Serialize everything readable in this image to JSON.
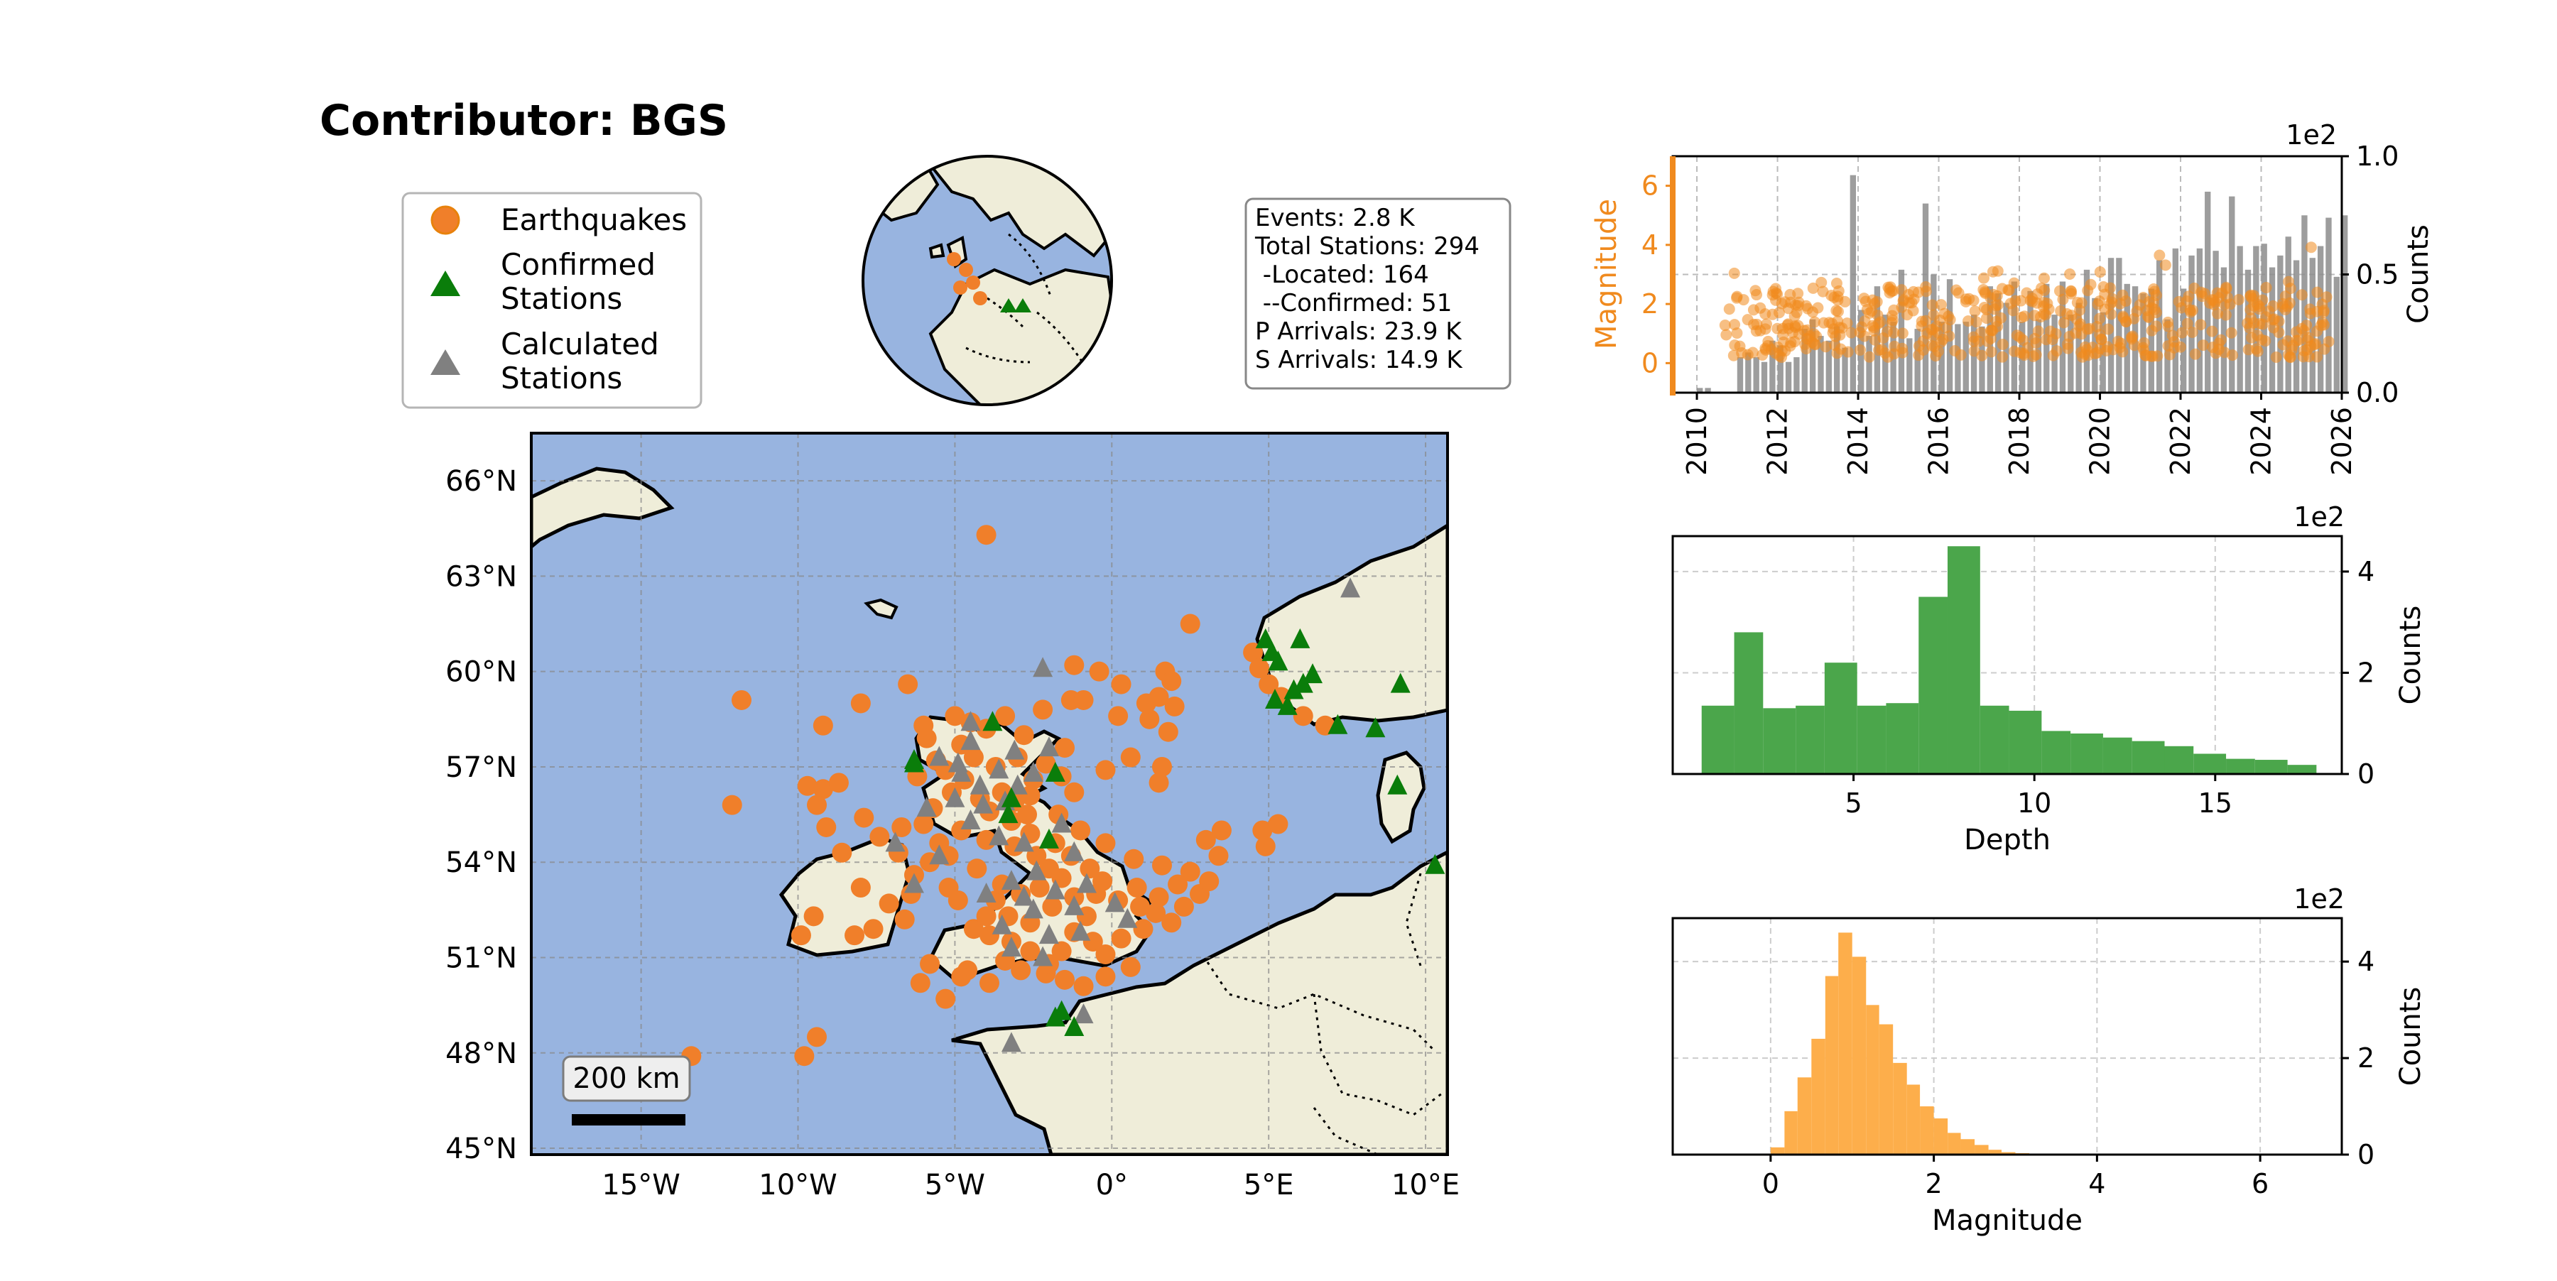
{
  "title": "Contributor: BGS",
  "colors": {
    "earthquake": "#f07f2a",
    "confirmed_station": "#0a7d0a",
    "calculated_station": "#808080",
    "ocean": "#98b4e0",
    "land": "#efedd9",
    "depth_hist": "#4ba64b",
    "magnitude_hist": "#fdae4b",
    "magnitude_axis": "#f08a1e",
    "counts_bar": "#8c8c8c",
    "scatter": "#f08a1e"
  },
  "legend": {
    "earthquakes": "Earthquakes",
    "confirmed_stations": "Confirmed\nStations",
    "calculated_stations": "Calculated\nStations"
  },
  "stats": [
    "Events: 2.8 K",
    "Total Stations: 294",
    " -Located: 164",
    " --Confirmed: 51",
    "P Arrivals: 23.9 K",
    "S Arrivals: 14.9 K"
  ],
  "map": {
    "extent_lon": [
      -18.5,
      10.7
    ],
    "extent_lat": [
      44.8,
      67.5
    ],
    "lat_ticks": [
      "45°N",
      "48°N",
      "51°N",
      "54°N",
      "57°N",
      "60°N",
      "63°N",
      "66°N"
    ],
    "lat_tick_values": [
      45,
      48,
      51,
      54,
      57,
      60,
      63,
      66
    ],
    "lon_ticks": [
      "15°W",
      "10°W",
      "5°W",
      "0°",
      "5°E",
      "10°E"
    ],
    "lon_tick_values": [
      -15,
      -10,
      -5,
      0,
      5,
      10
    ],
    "scale_bar": "200 km",
    "events": [
      [
        -4,
        64.3
      ],
      [
        -6.5,
        59.6
      ],
      [
        -8,
        59
      ],
      [
        -9.2,
        58.3
      ],
      [
        -11.8,
        59.1
      ],
      [
        -9.7,
        56.4
      ],
      [
        -9.2,
        56.3
      ],
      [
        -8.7,
        56.5
      ],
      [
        -9.4,
        55.8
      ],
      [
        -12.1,
        55.8
      ],
      [
        -9.1,
        55.1
      ],
      [
        -8.6,
        54.3
      ],
      [
        -9.5,
        52.3
      ],
      [
        -9.9,
        51.7
      ],
      [
        -8.2,
        51.7
      ],
      [
        -9.4,
        48.5
      ],
      [
        -9.8,
        47.9
      ],
      [
        -13.4,
        47.9
      ],
      [
        -5.3,
        49.7
      ],
      [
        -6.1,
        50.2
      ],
      [
        -4.6,
        50.6
      ],
      [
        -5.8,
        50.8
      ],
      [
        -5.2,
        53.2
      ],
      [
        -4.9,
        52.8
      ],
      [
        -6.3,
        53.6
      ],
      [
        -5.5,
        54.6
      ],
      [
        -6.0,
        55.2
      ],
      [
        -5.7,
        55.7
      ],
      [
        -5.1,
        56.2
      ],
      [
        -6.2,
        56.7
      ],
      [
        -5.6,
        57.2
      ],
      [
        -4.8,
        57.7
      ],
      [
        -5.9,
        57.9
      ],
      [
        -4.5,
        58.4
      ],
      [
        -3.4,
        58.6
      ],
      [
        -2.2,
        58.8
      ],
      [
        -1.3,
        59.1
      ],
      [
        -3.0,
        57.3
      ],
      [
        -2.5,
        56.6
      ],
      [
        -3.5,
        56.2
      ],
      [
        -4.2,
        56.0
      ],
      [
        -3.9,
        55.6
      ],
      [
        -3.2,
        55.3
      ],
      [
        -2.6,
        54.9
      ],
      [
        -3.1,
        54.5
      ],
      [
        -2.4,
        54.2
      ],
      [
        -1.8,
        54.6
      ],
      [
        -1.3,
        54.2
      ],
      [
        -0.7,
        53.8
      ],
      [
        -1.6,
        53.5
      ],
      [
        -2.3,
        53.2
      ],
      [
        -2.9,
        53.0
      ],
      [
        -3.7,
        52.8
      ],
      [
        -3.3,
        52.3
      ],
      [
        -2.6,
        52.1
      ],
      [
        -1.9,
        52.6
      ],
      [
        -1.2,
        52.9
      ],
      [
        -0.5,
        53.0
      ],
      [
        0.2,
        52.8
      ],
      [
        0.9,
        52.6
      ],
      [
        1.4,
        52.4
      ],
      [
        1.9,
        52.1
      ],
      [
        2.3,
        52.6
      ],
      [
        2.8,
        53.0
      ],
      [
        3.1,
        53.4
      ],
      [
        2.5,
        53.7
      ],
      [
        1.6,
        53.9
      ],
      [
        0.7,
        54.1
      ],
      [
        -0.2,
        54.6
      ],
      [
        -1.0,
        55.0
      ],
      [
        -1.7,
        55.5
      ],
      [
        -1.2,
        56.2
      ],
      [
        -0.2,
        56.9
      ],
      [
        0.6,
        57.3
      ],
      [
        1.2,
        58.5
      ],
      [
        1.8,
        58.1
      ],
      [
        0.2,
        58.6
      ],
      [
        -0.9,
        59.1
      ],
      [
        -1.2,
        60.2
      ],
      [
        -0.4,
        60.0
      ],
      [
        0.3,
        59.6
      ],
      [
        1.7,
        60.0
      ],
      [
        1.9,
        59.7
      ],
      [
        1.5,
        59.2
      ],
      [
        2.0,
        58.9
      ],
      [
        2.5,
        61.5
      ],
      [
        1.1,
        59.0
      ],
      [
        1.6,
        57.0
      ],
      [
        1.5,
        56.5
      ],
      [
        4.5,
        60.6
      ],
      [
        4.7,
        60.1
      ],
      [
        5.0,
        59.6
      ],
      [
        5.4,
        59.2
      ],
      [
        6.1,
        58.6
      ],
      [
        6.8,
        58.3
      ],
      [
        3.5,
        55.0
      ],
      [
        3.0,
        54.7
      ],
      [
        3.4,
        54.2
      ],
      [
        4.8,
        55.0
      ],
      [
        4.9,
        54.5
      ],
      [
        5.3,
        55.2
      ],
      [
        -2.1,
        50.5
      ],
      [
        -1.5,
        50.3
      ],
      [
        -0.9,
        50.1
      ],
      [
        -0.2,
        50.4
      ],
      [
        0.6,
        50.7
      ],
      [
        -3.2,
        51.5
      ],
      [
        -3.9,
        51.7
      ],
      [
        -4.4,
        51.9
      ],
      [
        -4.0,
        52.3
      ],
      [
        -1.2,
        51.8
      ],
      [
        -0.6,
        51.5
      ],
      [
        0.3,
        51.6
      ],
      [
        1.0,
        51.9
      ],
      [
        -2.6,
        51.2
      ],
      [
        -3.4,
        50.9
      ],
      [
        -2.0,
        50.8
      ],
      [
        -6.4,
        53.0
      ],
      [
        -7.1,
        52.7
      ],
      [
        -8.0,
        53.2
      ],
      [
        -7.4,
        54.8
      ],
      [
        -6.7,
        55.1
      ],
      [
        -7.9,
        55.4
      ],
      [
        -4.8,
        55.0
      ],
      [
        -5.2,
        54.2
      ],
      [
        -4.0,
        54.7
      ],
      [
        -2.0,
        53.8
      ],
      [
        -0.8,
        52.3
      ],
      [
        -3.5,
        53.3
      ],
      [
        -4.3,
        53.8
      ],
      [
        -2.6,
        56.1
      ],
      [
        -3.7,
        57.0
      ],
      [
        -4.7,
        56.6
      ],
      [
        -5.3,
        56.9
      ],
      [
        -4.0,
        58.2
      ],
      [
        -2.8,
        58.0
      ],
      [
        -5.0,
        58.6
      ],
      [
        -6.0,
        58.3
      ],
      [
        -4.4,
        57.3
      ],
      [
        -1.5,
        57.6
      ],
      [
        -2.1,
        57.1
      ],
      [
        -1.6,
        56.7
      ],
      [
        -3.1,
        55.9
      ],
      [
        -2.7,
        55.5
      ],
      [
        -0.3,
        53.4
      ],
      [
        0.8,
        53.2
      ],
      [
        1.5,
        52.9
      ],
      [
        2.1,
        53.3
      ],
      [
        -1.6,
        51.2
      ],
      [
        -0.2,
        51.1
      ],
      [
        -4.8,
        50.4
      ],
      [
        -3.9,
        50.2
      ],
      [
        -2.9,
        50.6
      ],
      [
        -6.8,
        54.3
      ],
      [
        -5.8,
        54.0
      ],
      [
        -6.6,
        52.2
      ],
      [
        -7.6,
        51.9
      ]
    ],
    "confirmed_stations": [
      [
        -3.8,
        58.4
      ],
      [
        -1.8,
        56.8
      ],
      [
        -3.3,
        55.5
      ],
      [
        -3.2,
        56.0
      ],
      [
        -2.0,
        54.7
      ],
      [
        -6.3,
        57.2
      ],
      [
        -1.6,
        49.3
      ],
      [
        -1.2,
        48.8
      ],
      [
        -1.8,
        49.1
      ],
      [
        4.9,
        61.0
      ],
      [
        5.1,
        60.6
      ],
      [
        6.0,
        61.0
      ],
      [
        5.3,
        60.3
      ],
      [
        6.1,
        59.6
      ],
      [
        6.4,
        59.9
      ],
      [
        5.8,
        59.4
      ],
      [
        5.2,
        59.1
      ],
      [
        5.6,
        58.9
      ],
      [
        7.2,
        58.3
      ],
      [
        8.4,
        58.2
      ],
      [
        9.2,
        59.6
      ],
      [
        9.1,
        56.4
      ],
      [
        10.3,
        53.9
      ],
      [
        -6.3,
        57.1
      ]
    ],
    "calculated_stations": [
      [
        -2.2,
        60.1
      ],
      [
        7.6,
        62.6
      ],
      [
        -5.5,
        57.3
      ],
      [
        -4.5,
        57.8
      ],
      [
        -3.1,
        57.5
      ],
      [
        -3.6,
        56.9
      ],
      [
        -4.2,
        56.4
      ],
      [
        -5.0,
        56.0
      ],
      [
        -3.0,
        56.4
      ],
      [
        -4.5,
        55.3
      ],
      [
        -3.6,
        54.8
      ],
      [
        -2.8,
        54.6
      ],
      [
        -1.2,
        54.3
      ],
      [
        -2.4,
        53.7
      ],
      [
        -3.2,
        53.4
      ],
      [
        -4.0,
        53.0
      ],
      [
        -1.8,
        53.1
      ],
      [
        -0.8,
        53.3
      ],
      [
        -1.2,
        52.6
      ],
      [
        -2.5,
        52.5
      ],
      [
        -3.5,
        52.0
      ],
      [
        -2.0,
        51.7
      ],
      [
        -1.0,
        51.8
      ],
      [
        0.5,
        52.2
      ],
      [
        -3.2,
        51.3
      ],
      [
        -2.2,
        51.0
      ],
      [
        -6.3,
        53.3
      ],
      [
        -6.9,
        54.6
      ],
      [
        -5.5,
        54.2
      ],
      [
        -3.2,
        48.3
      ],
      [
        -0.9,
        49.2
      ],
      [
        -4.1,
        55.8
      ],
      [
        -2.5,
        56.8
      ],
      [
        -4.8,
        56.8
      ],
      [
        0.1,
        52.7
      ],
      [
        -2.8,
        52.9
      ],
      [
        -3.4,
        55.9
      ],
      [
        -1.6,
        55.2
      ],
      [
        -2.0,
        57.6
      ],
      [
        -4.5,
        58.4
      ],
      [
        -4.9,
        57.1
      ],
      [
        -5.9,
        55.7
      ]
    ]
  },
  "globe": {},
  "chart_data": [
    {
      "type": "bar",
      "title": "",
      "ylabel": "Counts",
      "ylabel_left": "Magnitude",
      "exponent_label": "1e2",
      "xlim": [
        2009.4,
        2026
      ],
      "x_ticks": [
        "2010",
        "2012",
        "2014",
        "2016",
        "2018",
        "2020",
        "2022",
        "2024",
        "2026"
      ],
      "x_tick_values": [
        2010,
        2012,
        2014,
        2016,
        2018,
        2020,
        2022,
        2024,
        2026
      ],
      "ylim_left": [
        -1,
        7
      ],
      "left_ticks": [
        "0",
        "2",
        "4",
        "6"
      ],
      "left_tick_values": [
        0,
        2,
        4,
        6
      ],
      "ylim": [
        0,
        1
      ],
      "right_ticks": [
        "0.0",
        "0.5",
        "1.0"
      ],
      "right_tick_values": [
        0,
        0.5,
        1
      ],
      "bar_start": 2010.0,
      "bar_width": 0.2,
      "bar_values": [
        0.02,
        0.02,
        0.0,
        0.0,
        0.0,
        0.15,
        0.17,
        0.15,
        0.13,
        0.22,
        0.2,
        0.13,
        0.15,
        0.27,
        0.31,
        0.24,
        0.22,
        0.28,
        0.19,
        0.92,
        0.35,
        0.24,
        0.45,
        0.33,
        0.3,
        0.52,
        0.23,
        0.27,
        0.8,
        0.5,
        0.3,
        0.48,
        0.29,
        0.3,
        0.33,
        0.28,
        0.45,
        0.42,
        0.38,
        0.47,
        0.3,
        0.43,
        0.31,
        0.46,
        0.33,
        0.47,
        0.33,
        0.38,
        0.52,
        0.4,
        0.34,
        0.57,
        0.57,
        0.46,
        0.45,
        0.42,
        0.44,
        0.56,
        0.31,
        0.61,
        0.44,
        0.58,
        0.61,
        0.85,
        0.6,
        0.53,
        0.83,
        0.62,
        0.52,
        0.62,
        0.63,
        0.53,
        0.58,
        0.66,
        0.56,
        0.75,
        0.57,
        0.62,
        0.74,
        0.49,
        0.75
      ],
      "scatter_seed_note": "",
      "scatter_range": [
        2010.7,
        2025.7
      ],
      "scatter_mag_band": [
        0.2,
        2.6
      ]
    },
    {
      "type": "bar",
      "title": "",
      "xlabel": "Depth",
      "ylabel": "Counts",
      "exponent_label": "1e2",
      "xlim": [
        0,
        18.5
      ],
      "x_ticks": [
        "5",
        "10",
        "15"
      ],
      "x_tick_values": [
        5,
        10,
        15
      ],
      "ylim": [
        0,
        4.7
      ],
      "y_ticks": [
        "0",
        "2",
        "4"
      ],
      "y_tick_values": [
        0,
        2,
        4
      ],
      "bin_edges": [
        0.8,
        1.7,
        2.5,
        3.4,
        4.2,
        5.1,
        5.9,
        6.8,
        7.6,
        8.5,
        9.3,
        10.2,
        11.0,
        11.9,
        12.7,
        13.6,
        14.4,
        15.3,
        16.1,
        17.0,
        17.8
      ],
      "values": [
        1.35,
        2.8,
        1.3,
        1.35,
        2.2,
        1.35,
        1.4,
        3.5,
        4.5,
        1.35,
        1.25,
        0.85,
        0.8,
        0.72,
        0.65,
        0.55,
        0.4,
        0.3,
        0.28,
        0.18
      ]
    },
    {
      "type": "bar",
      "title": "",
      "xlabel": "Magnitude",
      "ylabel": "Counts",
      "exponent_label": "1e2",
      "xlim": [
        -1.2,
        7
      ],
      "x_ticks": [
        "0",
        "2",
        "4",
        "6"
      ],
      "x_tick_values": [
        0,
        2,
        4,
        6
      ],
      "ylim": [
        0,
        4.9
      ],
      "y_ticks": [
        "0",
        "2",
        "4"
      ],
      "y_tick_values": [
        0,
        2,
        4
      ],
      "bin_edges": [
        0.0,
        0.17,
        0.33,
        0.5,
        0.67,
        0.83,
        1.0,
        1.17,
        1.33,
        1.5,
        1.67,
        1.83,
        2.0,
        2.17,
        2.33,
        2.5,
        2.67,
        2.83,
        3.0,
        3.17
      ],
      "values": [
        0.15,
        0.9,
        1.6,
        2.4,
        3.7,
        4.6,
        4.1,
        3.1,
        2.7,
        1.9,
        1.45,
        1.0,
        0.75,
        0.45,
        0.32,
        0.2,
        0.1,
        0.05,
        0.03
      ]
    }
  ]
}
